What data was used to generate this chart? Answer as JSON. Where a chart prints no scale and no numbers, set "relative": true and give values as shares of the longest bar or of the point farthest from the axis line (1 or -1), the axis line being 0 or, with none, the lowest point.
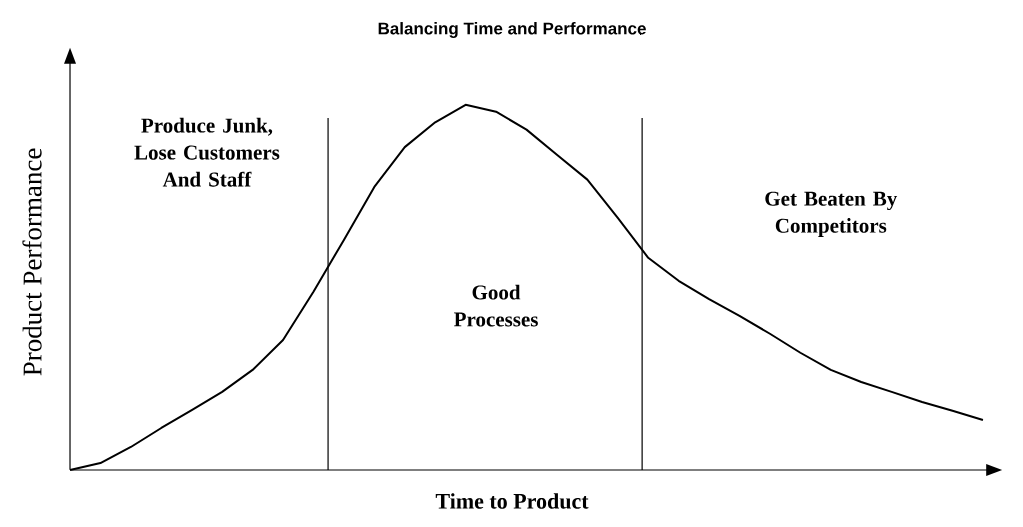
{
  "chart_data": {
    "type": "line",
    "title": "Balancing Time and Performance",
    "xlabel": "Time to Product",
    "ylabel": "Product Performance",
    "relative": true,
    "color": "#000000",
    "categories": [
      null,
      null,
      null,
      null,
      null,
      null,
      null,
      null,
      null,
      null,
      null,
      null,
      null,
      null,
      null,
      null,
      null,
      null,
      null,
      null,
      null,
      null,
      null,
      null,
      null,
      null,
      null,
      null,
      null,
      null,
      null
    ],
    "values": [
      0,
      0.019,
      0.063,
      0.115,
      0.164,
      0.214,
      0.274,
      0.356,
      0.488,
      0.63,
      0.775,
      0.884,
      0.952,
      1,
      0.981,
      0.932,
      0.863,
      0.795,
      0.69,
      0.581,
      0.518,
      0.468,
      0.422,
      0.373,
      0.321,
      0.274,
      0.241,
      0.214,
      0.186,
      0.162,
      0.137
    ],
    "annotations": [
      "Produce Junk, Lose Customers And Staff",
      "Good Processes",
      "Get Beaten By Competitors"
    ]
  }
}
